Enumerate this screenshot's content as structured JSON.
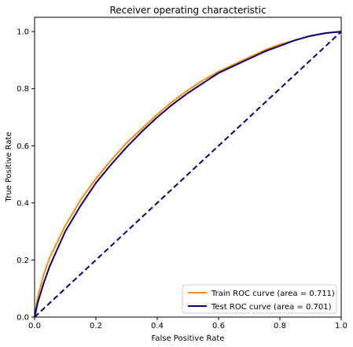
{
  "chart_data": {
    "type": "line",
    "title": "Receiver operating characteristic",
    "xlabel": "False Positive Rate",
    "ylabel": "True Positive Rate",
    "xlim": [
      0.0,
      1.0
    ],
    "ylim": [
      0.0,
      1.05
    ],
    "xticks": [
      "0.0",
      "0.2",
      "0.4",
      "0.6",
      "0.8",
      "1.0"
    ],
    "yticks": [
      "0.0",
      "0.2",
      "0.4",
      "0.6",
      "0.8",
      "1.0"
    ],
    "grid": false,
    "legend_position": "lower-right",
    "series": [
      {
        "name": "Train ROC curve (area = 0.711)",
        "color": "#ff8c00",
        "style": "solid",
        "x": [
          0.0,
          0.01,
          0.03,
          0.05,
          0.1,
          0.15,
          0.2,
          0.25,
          0.3,
          0.35,
          0.4,
          0.45,
          0.5,
          0.55,
          0.6,
          0.65,
          0.7,
          0.75,
          0.8,
          0.85,
          0.9,
          0.95,
          1.0
        ],
        "y": [
          0.0,
          0.07,
          0.15,
          0.21,
          0.32,
          0.41,
          0.485,
          0.55,
          0.61,
          0.66,
          0.71,
          0.755,
          0.795,
          0.83,
          0.86,
          0.885,
          0.91,
          0.935,
          0.955,
          0.97,
          0.985,
          0.995,
          1.0
        ]
      },
      {
        "name": "Test ROC curve (area = 0.701)",
        "color": "#000080",
        "style": "solid",
        "x": [
          0.0,
          0.01,
          0.03,
          0.05,
          0.1,
          0.15,
          0.2,
          0.25,
          0.3,
          0.35,
          0.4,
          0.45,
          0.5,
          0.55,
          0.6,
          0.65,
          0.7,
          0.75,
          0.8,
          0.85,
          0.9,
          0.95,
          1.0
        ],
        "y": [
          0.0,
          0.05,
          0.12,
          0.18,
          0.3,
          0.39,
          0.47,
          0.535,
          0.595,
          0.65,
          0.7,
          0.745,
          0.785,
          0.82,
          0.855,
          0.88,
          0.905,
          0.93,
          0.95,
          0.97,
          0.985,
          0.995,
          1.0
        ]
      },
      {
        "color": "#000080",
        "style": "dashed",
        "x": [
          0.0,
          1.0
        ],
        "y": [
          0.0,
          1.0
        ]
      }
    ]
  }
}
